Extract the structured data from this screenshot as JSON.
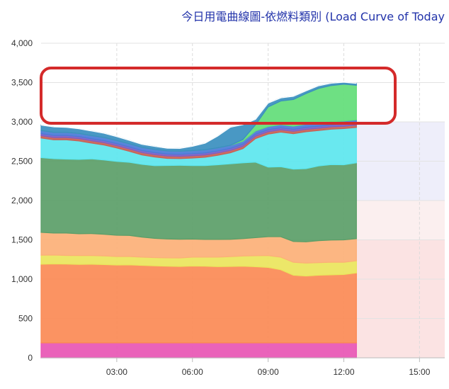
{
  "chart_data": {
    "type": "area",
    "stacked": true,
    "title": "今日用電曲線圖-依燃料類別 (Load Curve of Today",
    "xlabel": "",
    "ylabel": "",
    "x_hours": [
      0.0,
      0.5,
      1.0,
      1.5,
      2.0,
      2.5,
      3.0,
      3.5,
      4.0,
      4.5,
      5.0,
      5.5,
      6.0,
      6.5,
      7.0,
      7.5,
      8.0,
      8.5,
      9.0,
      9.5,
      10.0,
      10.5,
      11.0,
      11.5,
      12.0,
      12.5
    ],
    "xlim": [
      0,
      16.0
    ],
    "ylim": [
      0,
      4000
    ],
    "x_tick_labels": [
      "03:00",
      "06:00",
      "09:00",
      "12:00",
      "15:00"
    ],
    "x_tick_hours": [
      3,
      6,
      9,
      12,
      15
    ],
    "y_tick_values": [
      0,
      500,
      1000,
      1500,
      2000,
      2500,
      3000,
      3500,
      4000
    ],
    "y_tick_labels": [
      "0",
      "500",
      "1,000",
      "1,500",
      "2,000",
      "2,500",
      "3,000",
      "3,500",
      "4,000"
    ],
    "bands": [
      {
        "from": 0,
        "to": 1500,
        "color": "#fbe3e3"
      },
      {
        "from": 1500,
        "to": 2000,
        "color": "#fbefef"
      },
      {
        "from": 2000,
        "to": 3000,
        "color": "#eeeefa"
      }
    ],
    "series": [
      {
        "color": "#e855b4",
        "values": [
          190,
          190,
          190,
          190,
          190,
          190,
          190,
          190,
          190,
          190,
          190,
          190,
          190,
          190,
          190,
          190,
          190,
          190,
          190,
          190,
          190,
          190,
          190,
          190,
          190,
          190
        ]
      },
      {
        "color": "#fb8a55",
        "values": [
          1000,
          1005,
          1002,
          998,
          1000,
          996,
          990,
          992,
          985,
          980,
          975,
          972,
          978,
          975,
          970,
          972,
          975,
          968,
          960,
          930,
          860,
          850,
          860,
          865,
          870,
          890
        ]
      },
      {
        "color": "#eae55c",
        "values": [
          115,
          112,
          110,
          112,
          110,
          110,
          108,
          106,
          105,
          104,
          106,
          108,
          112,
          115,
          120,
          125,
          130,
          140,
          150,
          160,
          165,
          165,
          160,
          160,
          155,
          155
        ]
      },
      {
        "color": "#fcb077",
        "values": [
          290,
          280,
          285,
          278,
          280,
          275,
          270,
          268,
          255,
          245,
          240,
          238,
          230,
          225,
          225,
          220,
          220,
          230,
          240,
          260,
          265,
          270,
          280,
          282,
          285,
          280
        ]
      },
      {
        "color": "#5b9e68",
        "values": [
          950,
          945,
          940,
          945,
          950,
          945,
          940,
          930,
          925,
          925,
          935,
          940,
          935,
          940,
          950,
          960,
          965,
          960,
          885,
          890,
          920,
          930,
          950,
          960,
          955,
          965
        ]
      },
      {
        "color": "#5ce6ee",
        "values": [
          250,
          240,
          245,
          235,
          200,
          190,
          170,
          140,
          120,
          110,
          90,
          85,
          95,
          105,
          120,
          140,
          180,
          300,
          420,
          440,
          450,
          470,
          450,
          450,
          460,
          450
        ]
      },
      {
        "color": "#c86055",
        "values": [
          30,
          30,
          30,
          30,
          30,
          30,
          30,
          30,
          30,
          30,
          30,
          30,
          30,
          30,
          30,
          30,
          30,
          30,
          30,
          30,
          30,
          30,
          30,
          30,
          30,
          30
        ]
      },
      {
        "color": "#7b5fc5",
        "values": [
          25,
          25,
          25,
          25,
          25,
          25,
          25,
          25,
          25,
          25,
          25,
          25,
          25,
          25,
          25,
          25,
          25,
          25,
          25,
          25,
          25,
          25,
          25,
          25,
          25,
          25
        ]
      },
      {
        "color": "#4a7ad8",
        "values": [
          40,
          40,
          40,
          40,
          40,
          40,
          40,
          40,
          40,
          40,
          40,
          40,
          40,
          40,
          40,
          40,
          40,
          40,
          40,
          40,
          40,
          40,
          40,
          40,
          40,
          40
        ]
      },
      {
        "color": "#62dd78",
        "values": [
          0,
          0,
          0,
          0,
          0,
          0,
          0,
          0,
          0,
          0,
          0,
          0,
          0,
          0,
          0,
          0,
          20,
          80,
          250,
          300,
          340,
          390,
          440,
          460,
          470,
          440
        ]
      },
      {
        "color": "#3a8fbf",
        "values": [
          70,
          70,
          65,
          60,
          60,
          55,
          50,
          45,
          40,
          40,
          35,
          35,
          55,
          85,
          150,
          230,
          190,
          70,
          50,
          40,
          40,
          35,
          35,
          30,
          25,
          25
        ]
      }
    ],
    "highlight_box": {
      "color": "#d42a2a"
    }
  }
}
